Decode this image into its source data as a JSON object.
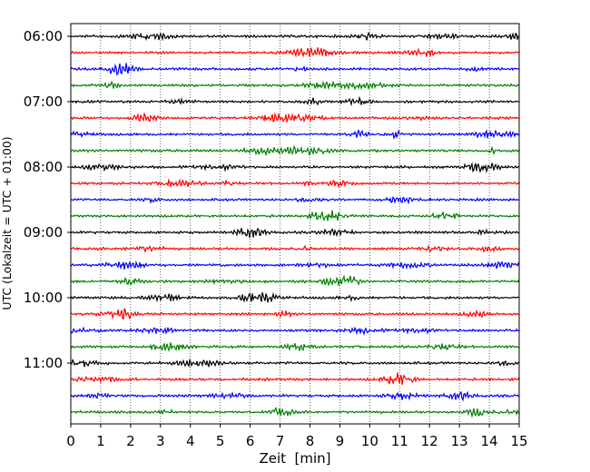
{
  "chart_data": {
    "type": "line",
    "title": "",
    "xlabel": "Zeit  [min]",
    "ylabel": "UTC (Lokalzeit = UTC + 01:00)",
    "xlim": [
      0,
      15
    ],
    "x_ticks": [
      "0",
      "1",
      "2",
      "3",
      "4",
      "5",
      "6",
      "7",
      "8",
      "9",
      "10",
      "11",
      "12",
      "13",
      "14",
      "15"
    ],
    "y_ticks": [
      "06:00",
      "07:00",
      "08:00",
      "09:00",
      "10:00",
      "11:00"
    ],
    "trace_start_utc": "06:00",
    "trace_interval_minutes": 15,
    "trace_count": 24,
    "trace_colors": [
      "#000000",
      "#ff0000",
      "#0000ff",
      "#008000"
    ],
    "grid": "vertical-dotted",
    "legend": "none"
  }
}
